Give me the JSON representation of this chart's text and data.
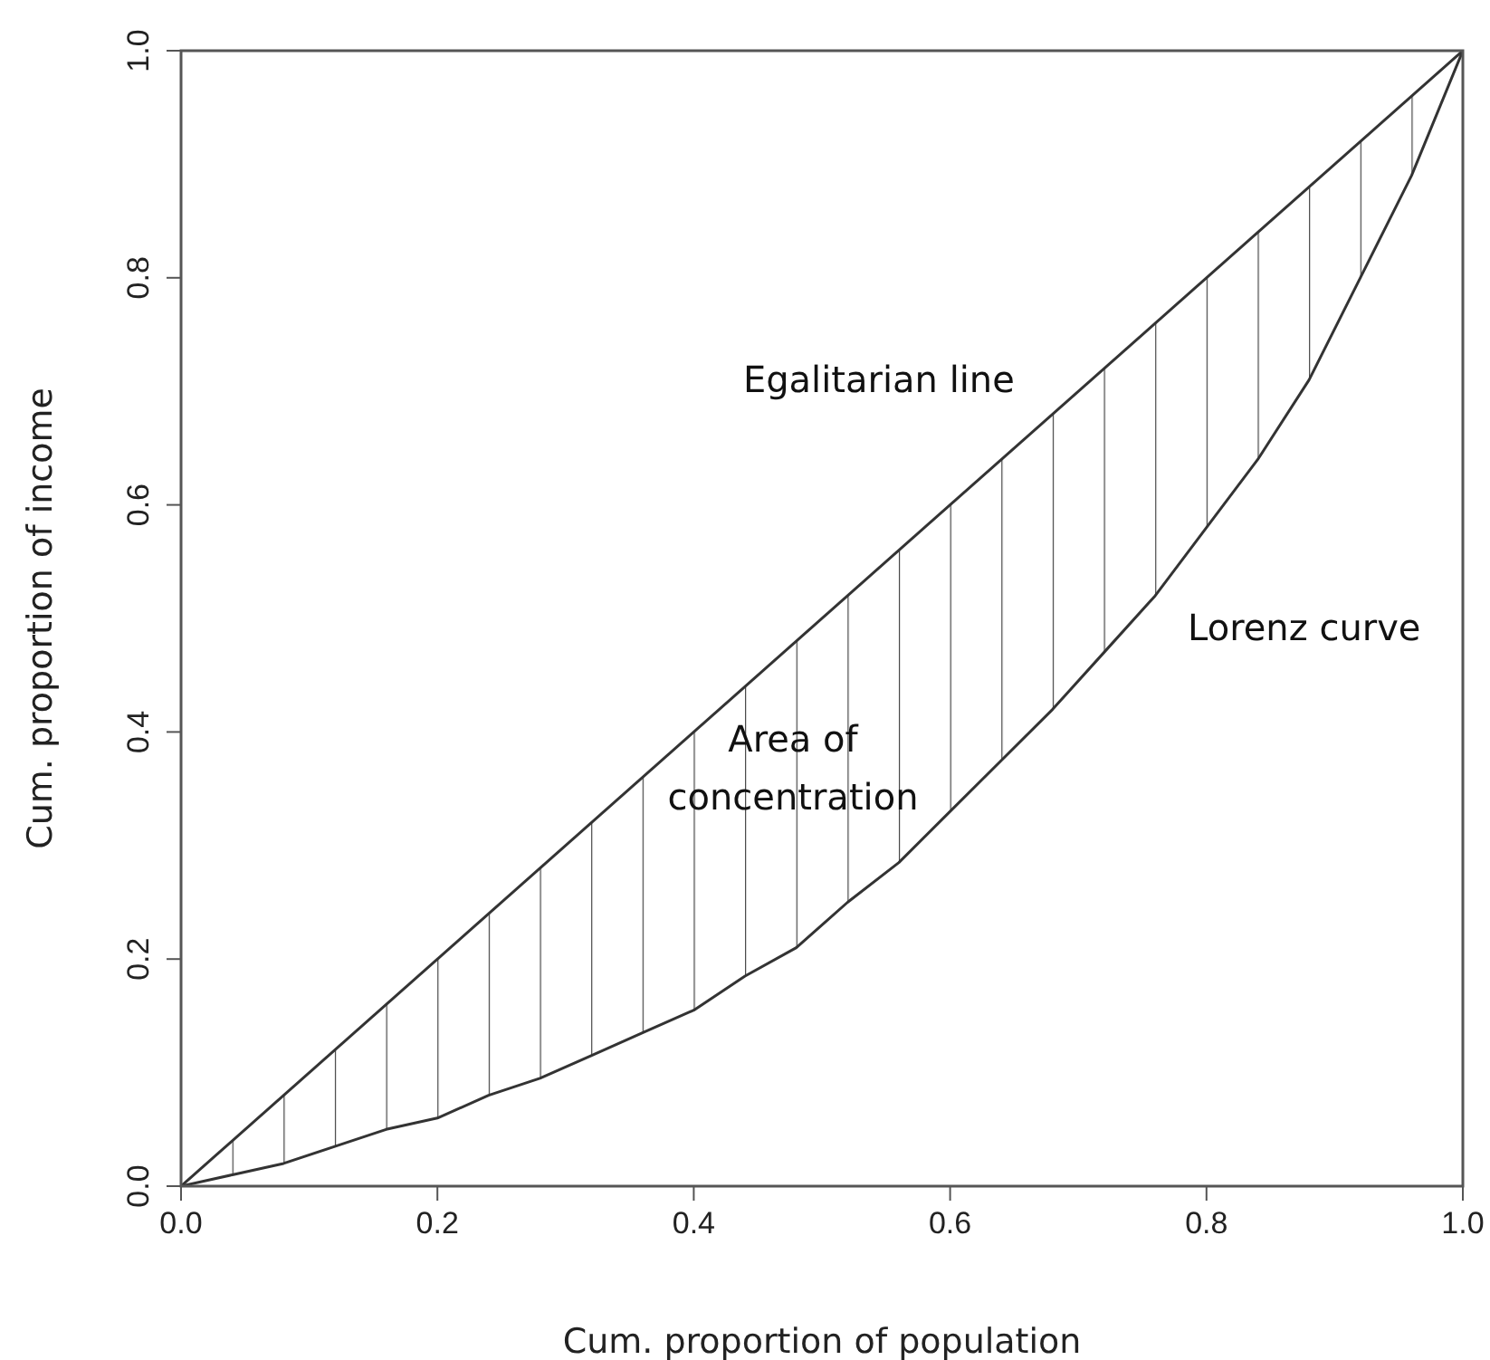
{
  "chart_data": {
    "type": "line",
    "xlabel": "Cum. proportion of population",
    "ylabel": "Cum. proportion of income",
    "series": [
      {
        "name": null,
        "color": "#333333",
        "x": [
          0,
          1
        ],
        "values": [
          0,
          1
        ]
      },
      {
        "name": null,
        "color": "#333333",
        "x": [
          0,
          0.04,
          0.08,
          0.12,
          0.16,
          0.2,
          0.24,
          0.28,
          0.32,
          0.36,
          0.4,
          0.44,
          0.48,
          0.52,
          0.56,
          0.6,
          0.64,
          0.68,
          0.72,
          0.76,
          0.8,
          0.84,
          0.88,
          0.92,
          0.96,
          1
        ],
        "values": [
          0,
          0.01,
          0.02,
          0.035,
          0.05,
          0.06,
          0.08,
          0.095,
          0.115,
          0.135,
          0.155,
          0.185,
          0.21,
          0.25,
          0.285,
          0.33,
          0.375,
          0.42,
          0.47,
          0.52,
          0.58,
          0.64,
          0.71,
          0.8,
          0.89,
          1
        ],
        "lower": [
          0,
          0.01,
          0.02,
          0.035,
          0.05,
          0.06,
          0.08,
          0.095,
          0.115,
          0.135,
          0.155,
          0.185,
          0.21,
          0.25,
          0.285,
          0.33,
          0.375,
          0.42,
          0.47,
          0.52,
          0.58,
          0.64,
          0.71,
          0.8,
          0.89,
          1
        ],
        "upper": [
          0,
          0.04,
          0.08,
          0.12,
          0.16,
          0.2,
          0.24,
          0.28,
          0.32,
          0.36,
          0.4,
          0.44,
          0.48,
          0.52,
          0.56,
          0.6,
          0.64,
          0.68,
          0.72,
          0.76,
          0.8,
          0.84,
          0.88,
          0.92,
          0.96,
          1
        ]
      }
    ],
    "xlim": [
      0,
      1
    ],
    "ylim": [
      0,
      1
    ],
    "xticks": [
      {
        "value": 0,
        "label": "0.0"
      },
      0.2,
      0.4,
      0.6,
      0.8,
      {
        "value": 1,
        "label": "1.0"
      }
    ],
    "yticks": [
      {
        "value": 0,
        "label": "0.0"
      },
      0.2,
      0.4,
      0.6,
      0.8,
      {
        "value": 1,
        "label": "1.0"
      }
    ],
    "grid": false,
    "legend": false,
    "marker": "none",
    "line_style": "solid",
    "annotations": [
      {
        "text": "Egalitarian line",
        "x": 0.68,
        "y": 0.68
      },
      {
        "text": "Lorenz curve",
        "x": 0.8,
        "y": 0.58
      },
      "Area of\nconcentration"
    ]
  }
}
